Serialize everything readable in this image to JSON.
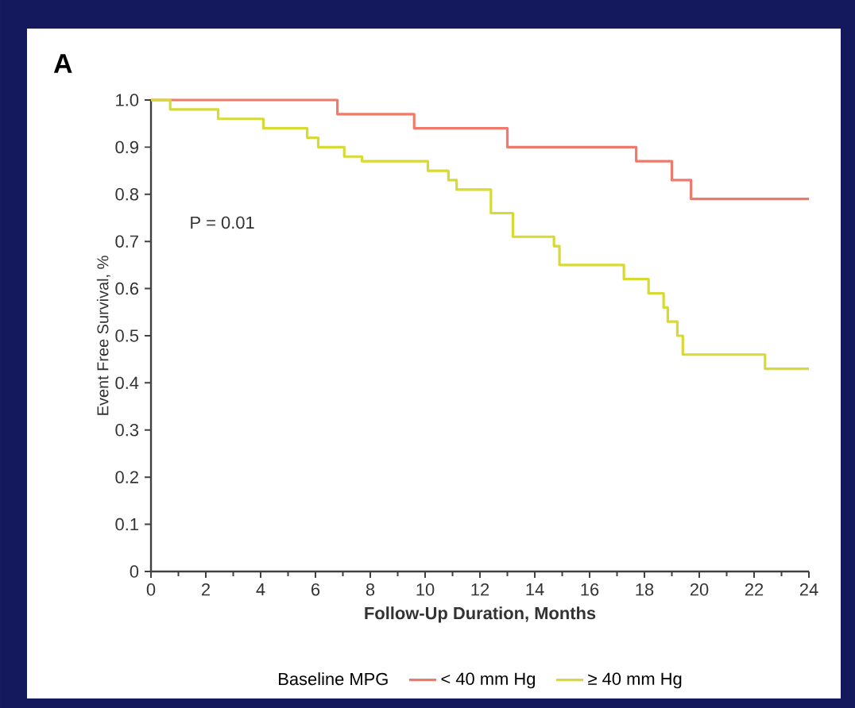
{
  "chart_data": {
    "type": "step",
    "title": "A",
    "xlabel": "Follow-Up Duration, Months",
    "ylabel": "Event Free Survival, %",
    "legend_title": "Baseline MPG",
    "annotations": [
      "P = 0.01"
    ],
    "xlim": [
      0,
      24
    ],
    "ylim": [
      0,
      1
    ],
    "xticks": [
      0,
      2,
      4,
      6,
      8,
      10,
      12,
      14,
      16,
      18,
      20,
      22,
      24
    ],
    "yticks": [
      0,
      0.1,
      0.2,
      0.3,
      0.4,
      0.5,
      0.6,
      0.7,
      0.8,
      0.9,
      {
        "value": 1,
        "label": "1.0"
      }
    ],
    "legend": "bottom",
    "series": [
      {
        "name": "< 40 mm Hg",
        "color": "#f07a6a",
        "x": [
          0,
          6.8,
          9.6,
          13.0,
          17.7,
          19.0,
          19.7,
          24
        ],
        "values": [
          1,
          0.97,
          0.94,
          0.9,
          0.87,
          0.83,
          0.79,
          0.79
        ]
      },
      {
        "name": "≥ 40 mm Hg",
        "color": "#d6d936",
        "x": [
          0,
          0.7,
          2.45,
          4.1,
          5.7,
          6.1,
          7.05,
          7.7,
          10.1,
          10.85,
          11.15,
          12.4,
          13.2,
          14.7,
          14.9,
          17.25,
          18.15,
          18.7,
          18.85,
          19.2,
          19.4,
          22.4,
          24
        ],
        "values": [
          1,
          0.98,
          0.96,
          0.94,
          0.92,
          0.9,
          0.88,
          0.87,
          0.85,
          0.83,
          0.81,
          0.76,
          0.71,
          0.69,
          0.65,
          0.62,
          0.59,
          0.56,
          0.53,
          0.5,
          0.46,
          0.43,
          0.43
        ]
      }
    ]
  }
}
